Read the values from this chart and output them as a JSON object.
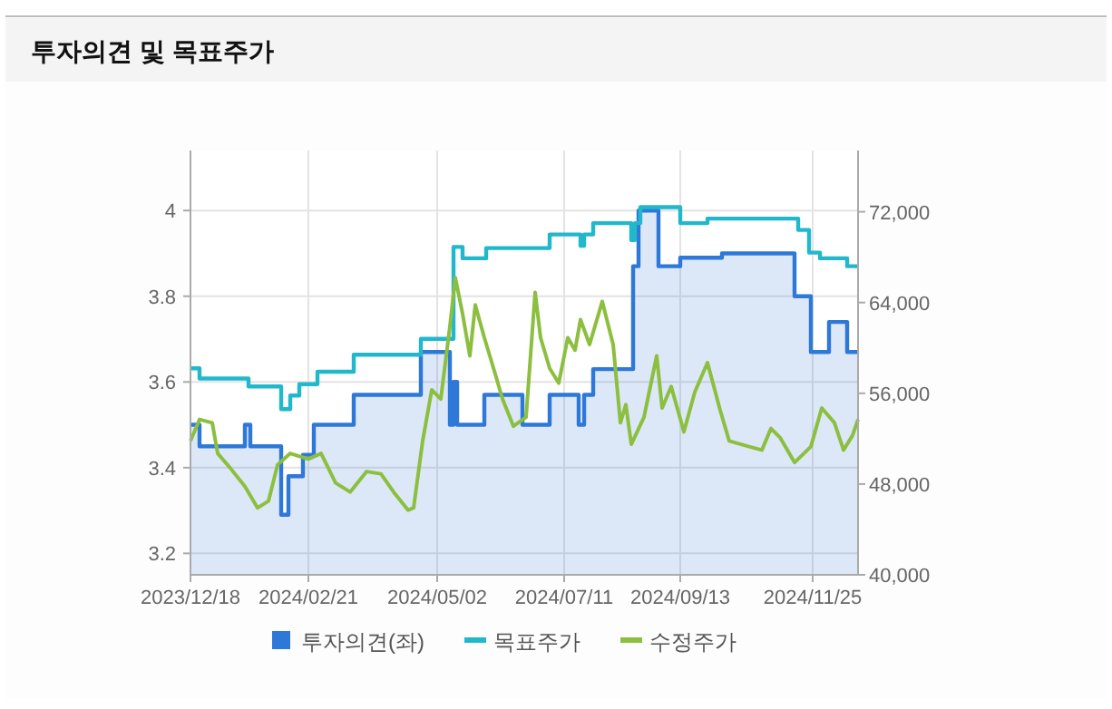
{
  "chart_data": {
    "type": "line",
    "title": "투자의견 및 목표주가",
    "xlim": [
      "2023-12-18",
      "2024-12-20"
    ],
    "xticks": [
      {
        "value": "2023-12-18",
        "label": "2023/12/18"
      },
      {
        "value": "2024-02-21",
        "label": "2024/02/21"
      },
      {
        "value": "2024-05-02",
        "label": "2024/05/02"
      },
      {
        "value": "2024-07-11",
        "label": "2024/07/11"
      },
      {
        "value": "2024-09-13",
        "label": "2024/09/13"
      },
      {
        "value": "2024-11-25",
        "label": "2024/11/25"
      }
    ],
    "ylim": [
      3.15,
      4.14
    ],
    "yticks": [
      3.2,
      3.4,
      3.6,
      3.8,
      4
    ],
    "y2lim": [
      40000,
      77400
    ],
    "y2ticks": [
      {
        "value": 40000,
        "label": "40,000"
      },
      {
        "value": 48000,
        "label": "48,000"
      },
      {
        "value": 56000,
        "label": "56,000"
      },
      {
        "value": 64000,
        "label": "64,000"
      },
      {
        "value": 72000,
        "label": "72,000"
      }
    ],
    "grid": true,
    "legend": "bottom",
    "series": [
      {
        "name": "투자의견(좌)",
        "type": "area",
        "color": "#2e78d8",
        "x": [
          "2023-12-18",
          "2023-12-23",
          "2023-12-23",
          "2024-01-17",
          "2024-01-17",
          "2024-01-20",
          "2024-01-20",
          "2024-02-06",
          "2024-02-06",
          "2024-02-10",
          "2024-02-10",
          "2024-02-18",
          "2024-02-18",
          "2024-02-24",
          "2024-02-24",
          "2024-03-17",
          "2024-03-17",
          "2024-04-23",
          "2024-04-23",
          "2024-05-09",
          "2024-05-09",
          "2024-05-11",
          "2024-05-11",
          "2024-05-13",
          "2024-05-13",
          "2024-05-28",
          "2024-05-28",
          "2024-06-18",
          "2024-06-18",
          "2024-07-03",
          "2024-07-03",
          "2024-07-19",
          "2024-07-19",
          "2024-07-22",
          "2024-07-22",
          "2024-07-27",
          "2024-07-27",
          "2024-08-18",
          "2024-08-18",
          "2024-08-21",
          "2024-08-21",
          "2024-09-01",
          "2024-09-01",
          "2024-09-13",
          "2024-09-13",
          "2024-10-06",
          "2024-10-06",
          "2024-11-15",
          "2024-11-15",
          "2024-11-24",
          "2024-11-24",
          "2024-12-04",
          "2024-12-04",
          "2024-12-14",
          "2024-12-14",
          "2024-12-20"
        ],
        "values": [
          3.5,
          3.5,
          3.45,
          3.45,
          3.5,
          3.5,
          3.45,
          3.45,
          3.29,
          3.29,
          3.38,
          3.38,
          3.43,
          3.43,
          3.5,
          3.5,
          3.57,
          3.57,
          3.67,
          3.67,
          3.5,
          3.5,
          3.6,
          3.6,
          3.5,
          3.5,
          3.57,
          3.57,
          3.5,
          3.5,
          3.57,
          3.57,
          3.5,
          3.5,
          3.57,
          3.57,
          3.63,
          3.63,
          3.87,
          3.87,
          4.0,
          4.0,
          3.87,
          3.87,
          3.89,
          3.89,
          3.9,
          3.9,
          3.8,
          3.8,
          3.67,
          3.67,
          3.74,
          3.74,
          3.67,
          3.67
        ]
      },
      {
        "name": "목표주가",
        "type": "step",
        "axis": "y2",
        "color": "#22b8cc",
        "x": [
          "2023-12-18",
          "2023-12-23",
          "2024-01-19",
          "2024-02-06",
          "2024-02-11",
          "2024-02-16",
          "2024-02-26",
          "2024-03-17",
          "2024-04-23",
          "2024-05-11",
          "2024-05-16",
          "2024-05-29",
          "2024-07-03",
          "2024-07-20",
          "2024-07-22",
          "2024-07-27",
          "2024-08-17",
          "2024-08-19",
          "2024-08-22",
          "2024-09-13",
          "2024-09-28",
          "2024-11-17",
          "2024-11-23",
          "2024-11-29",
          "2024-12-14",
          "2024-12-20"
        ],
        "values": [
          58200,
          57300,
          56600,
          54600,
          55800,
          56800,
          57900,
          59400,
          60800,
          68900,
          67900,
          68800,
          70000,
          69000,
          70000,
          71000,
          69500,
          71000,
          72400,
          71000,
          71400,
          70400,
          68400,
          67900,
          67200,
          67200
        ]
      },
      {
        "name": "수정주가",
        "axis": "y2",
        "color": "#8cbf3f",
        "x": [
          "2023-12-18",
          "2023-12-23",
          "2023-12-30",
          "2024-01-02",
          "2024-01-09",
          "2024-01-17",
          "2024-01-24",
          "2024-01-30",
          "2024-02-04",
          "2024-02-11",
          "2024-02-21",
          "2024-02-28",
          "2024-03-07",
          "2024-03-15",
          "2024-03-24",
          "2024-04-01",
          "2024-04-08",
          "2024-04-16",
          "2024-04-19",
          "2024-04-24",
          "2024-04-29",
          "2024-05-04",
          "2024-05-09",
          "2024-05-12",
          "2024-05-16",
          "2024-05-20",
          "2024-05-23",
          "2024-05-28",
          "2024-06-03",
          "2024-06-07",
          "2024-06-13",
          "2024-06-20",
          "2024-06-25",
          "2024-06-28",
          "2024-07-03",
          "2024-07-08",
          "2024-07-13",
          "2024-07-17",
          "2024-07-20",
          "2024-07-25",
          "2024-08-01",
          "2024-08-07",
          "2024-08-11",
          "2024-08-14",
          "2024-08-17",
          "2024-08-24",
          "2024-08-31",
          "2024-09-03",
          "2024-09-08",
          "2024-09-15",
          "2024-09-21",
          "2024-09-28",
          "2024-10-05",
          "2024-10-10",
          "2024-10-21",
          "2024-10-28",
          "2024-11-02",
          "2024-11-07",
          "2024-11-15",
          "2024-11-24",
          "2024-11-30",
          "2024-12-07",
          "2024-12-12",
          "2024-12-17",
          "2024-12-20"
        ],
        "values": [
          51800,
          53700,
          53400,
          50700,
          49400,
          47800,
          45900,
          46500,
          49700,
          50700,
          50200,
          50700,
          48100,
          47300,
          49100,
          48900,
          47300,
          45700,
          45900,
          51800,
          56300,
          55500,
          61900,
          66200,
          63000,
          59300,
          63800,
          60900,
          57700,
          55500,
          53100,
          53900,
          64900,
          60900,
          58200,
          56900,
          60900,
          59800,
          62500,
          60300,
          64100,
          60300,
          53400,
          55000,
          51500,
          53900,
          59300,
          54700,
          56600,
          52600,
          56100,
          58700,
          54500,
          51800,
          51300,
          51000,
          52900,
          52100,
          49900,
          51300,
          54700,
          53400,
          51000,
          52300,
          53700
        ]
      }
    ]
  }
}
